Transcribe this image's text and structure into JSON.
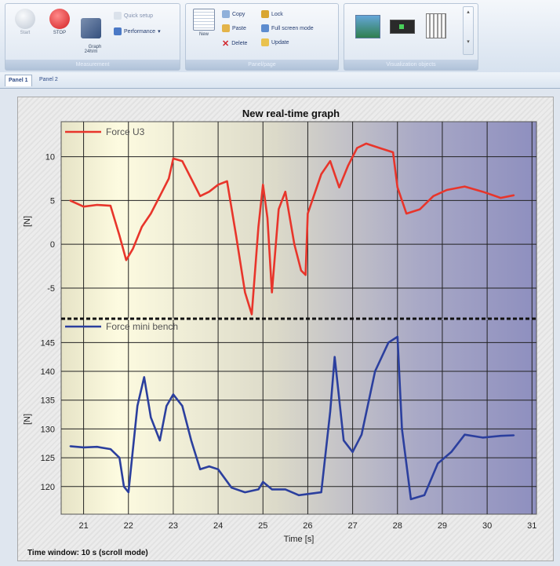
{
  "ribbon": {
    "groups": [
      {
        "label": "Measurement"
      },
      {
        "label": "Panel/page"
      },
      {
        "label": "Visualization objects"
      }
    ],
    "start_label": "Start",
    "stop_label": "STOP",
    "graph_label": "Graph\n24h/m",
    "quick_setup_label": "Quick setup",
    "performance_label": "Performance",
    "new_label": "New",
    "copy_label": "Copy",
    "paste_label": "Paste",
    "delete_label": "Delete",
    "lock_label": "Lock",
    "fullscreen_label": "Full screen mode",
    "update_label": "Update",
    "colors": {
      "stop": "#e0393c",
      "accent": "#2d5aa8"
    }
  },
  "tabs": [
    {
      "label": "Panel 1"
    },
    {
      "label": "Panel 2"
    }
  ],
  "graph": {
    "title": "New real-time graph",
    "status": "Time window: 10 s (scroll mode)",
    "xlabel": "Time [s]"
  },
  "chart_data": [
    {
      "type": "line",
      "xlim": [
        20.5,
        31.1
      ],
      "ylim": [
        -8.5,
        14
      ],
      "yticks": [
        -5,
        0,
        5,
        10
      ],
      "ylabel": "[N]",
      "grid": true,
      "legend": "top-left",
      "series": [
        {
          "name": "Force U3",
          "color": "#e8352b",
          "x": [
            20.7,
            21.0,
            21.3,
            21.6,
            21.8,
            21.95,
            22.1,
            22.3,
            22.5,
            22.7,
            22.9,
            23.0,
            23.2,
            23.4,
            23.6,
            23.8,
            24.0,
            24.2,
            24.4,
            24.6,
            24.75,
            24.9,
            25.0,
            25.1,
            25.2,
            25.35,
            25.5,
            25.7,
            25.85,
            25.95,
            26.0,
            26.3,
            26.5,
            26.7,
            26.9,
            27.1,
            27.3,
            27.6,
            27.9,
            28.0,
            28.2,
            28.5,
            28.8,
            29.1,
            29.5,
            29.9,
            30.3,
            30.6
          ],
          "y": [
            5.0,
            4.3,
            4.5,
            4.4,
            1.0,
            -1.8,
            -0.5,
            2.0,
            3.5,
            5.5,
            7.5,
            9.8,
            9.5,
            7.5,
            5.5,
            6.0,
            6.8,
            7.2,
            1.0,
            -5.5,
            -8.0,
            2.0,
            6.8,
            3.0,
            -5.5,
            4.0,
            6.0,
            0.0,
            -3.0,
            -3.5,
            3.5,
            8.0,
            9.5,
            6.5,
            9.0,
            11.0,
            11.5,
            11.0,
            10.5,
            6.5,
            3.5,
            4.0,
            5.5,
            6.2,
            6.6,
            6.0,
            5.3,
            5.6
          ]
        }
      ]
    },
    {
      "type": "line",
      "xlim": [
        20.5,
        31.1
      ],
      "ylim": [
        115.2,
        149
      ],
      "yticks": [
        120,
        125,
        130,
        135,
        140,
        145
      ],
      "xticks": [
        21,
        22,
        23,
        24,
        25,
        26,
        27,
        28,
        29,
        30,
        31
      ],
      "ylabel": "[N]",
      "xlabel": "Time [s]",
      "grid": true,
      "legend": "top-left",
      "series": [
        {
          "name": "Force mini bench",
          "color": "#2b3f9e",
          "x": [
            20.7,
            21.0,
            21.3,
            21.6,
            21.8,
            21.9,
            22.0,
            22.2,
            22.35,
            22.5,
            22.7,
            22.85,
            23.0,
            23.2,
            23.4,
            23.6,
            23.8,
            24.0,
            24.3,
            24.6,
            24.9,
            25.0,
            25.2,
            25.5,
            25.8,
            26.1,
            26.3,
            26.5,
            26.6,
            26.8,
            27.0,
            27.2,
            27.5,
            27.8,
            28.0,
            28.1,
            28.3,
            28.6,
            28.9,
            29.2,
            29.5,
            29.9,
            30.3,
            30.6
          ],
          "y": [
            127.0,
            126.8,
            126.9,
            126.5,
            125.0,
            120.0,
            119.0,
            134.0,
            139.0,
            132.0,
            128.0,
            134.0,
            136.0,
            134.0,
            128.0,
            123.0,
            123.5,
            123.0,
            119.8,
            119.0,
            119.5,
            120.8,
            119.5,
            119.5,
            118.5,
            118.8,
            119.0,
            133.0,
            142.5,
            128.0,
            126.0,
            129.0,
            140.0,
            145.0,
            146.0,
            130.0,
            117.8,
            118.5,
            124.0,
            126.0,
            129.0,
            128.5,
            128.8,
            128.9
          ]
        }
      ]
    }
  ]
}
